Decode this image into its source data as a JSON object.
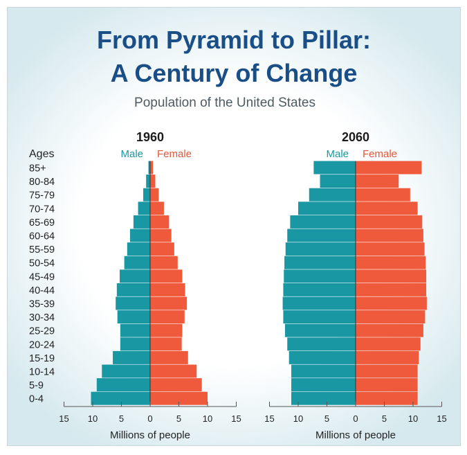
{
  "title_line1": "From Pyramid to Pillar:",
  "title_line2": "A Century of Change",
  "subtitle": "Population of the United States",
  "ages_header": "Ages",
  "legend": {
    "male": "Male",
    "female": "Female"
  },
  "colors": {
    "male": "#1997a3",
    "female": "#f05a3c",
    "title": "#1a4e86"
  },
  "chart_data": [
    {
      "type": "bar",
      "orientation": "horizontal-population-pyramid",
      "title": "1960",
      "xlabel": "Millions of people",
      "xlim": [
        -15,
        15
      ],
      "xticks": [
        "15",
        "10",
        "5",
        "0",
        "5",
        "10",
        "15"
      ],
      "categories": [
        "85+",
        "80-84",
        "75-79",
        "70-74",
        "65-69",
        "60-64",
        "55-59",
        "50-54",
        "45-49",
        "40-44",
        "35-39",
        "30-34",
        "25-29",
        "20-24",
        "15-19",
        "10-14",
        "5-9",
        "0-4"
      ],
      "series": [
        {
          "name": "Male",
          "values": [
            0.3,
            0.7,
            1.2,
            2.1,
            2.9,
            3.5,
            4.0,
            4.5,
            5.3,
            5.8,
            6.0,
            5.7,
            5.2,
            5.2,
            6.5,
            8.4,
            9.3,
            10.3
          ]
        },
        {
          "name": "Female",
          "values": [
            0.5,
            0.9,
            1.5,
            2.4,
            3.3,
            3.7,
            4.2,
            4.8,
            5.6,
            6.1,
            6.4,
            6.0,
            5.6,
            5.5,
            6.6,
            8.1,
            9.0,
            10.0
          ]
        }
      ]
    },
    {
      "type": "bar",
      "orientation": "horizontal-population-pyramid",
      "title": "2060",
      "xlabel": "Millions of people",
      "xlim": [
        -15,
        15
      ],
      "xticks": [
        "15",
        "10",
        "5",
        "0",
        "5",
        "10",
        "15"
      ],
      "categories": [
        "85+",
        "80-84",
        "75-79",
        "70-74",
        "65-69",
        "60-64",
        "55-59",
        "50-54",
        "45-49",
        "40-44",
        "35-39",
        "30-34",
        "25-29",
        "20-24",
        "15-19",
        "10-14",
        "5-9",
        "0-4"
      ],
      "series": [
        {
          "name": "Male",
          "values": [
            7.3,
            6.2,
            8.1,
            10.0,
            11.4,
            11.9,
            12.2,
            12.4,
            12.5,
            12.6,
            12.7,
            12.6,
            12.3,
            11.9,
            11.6,
            11.2,
            11.2,
            11.2
          ]
        },
        {
          "name": "Female",
          "values": [
            11.5,
            7.5,
            9.5,
            10.8,
            11.6,
            11.8,
            12.0,
            12.2,
            12.3,
            12.3,
            12.4,
            12.1,
            11.8,
            11.3,
            11.0,
            10.8,
            10.8,
            10.8
          ]
        }
      ]
    }
  ]
}
